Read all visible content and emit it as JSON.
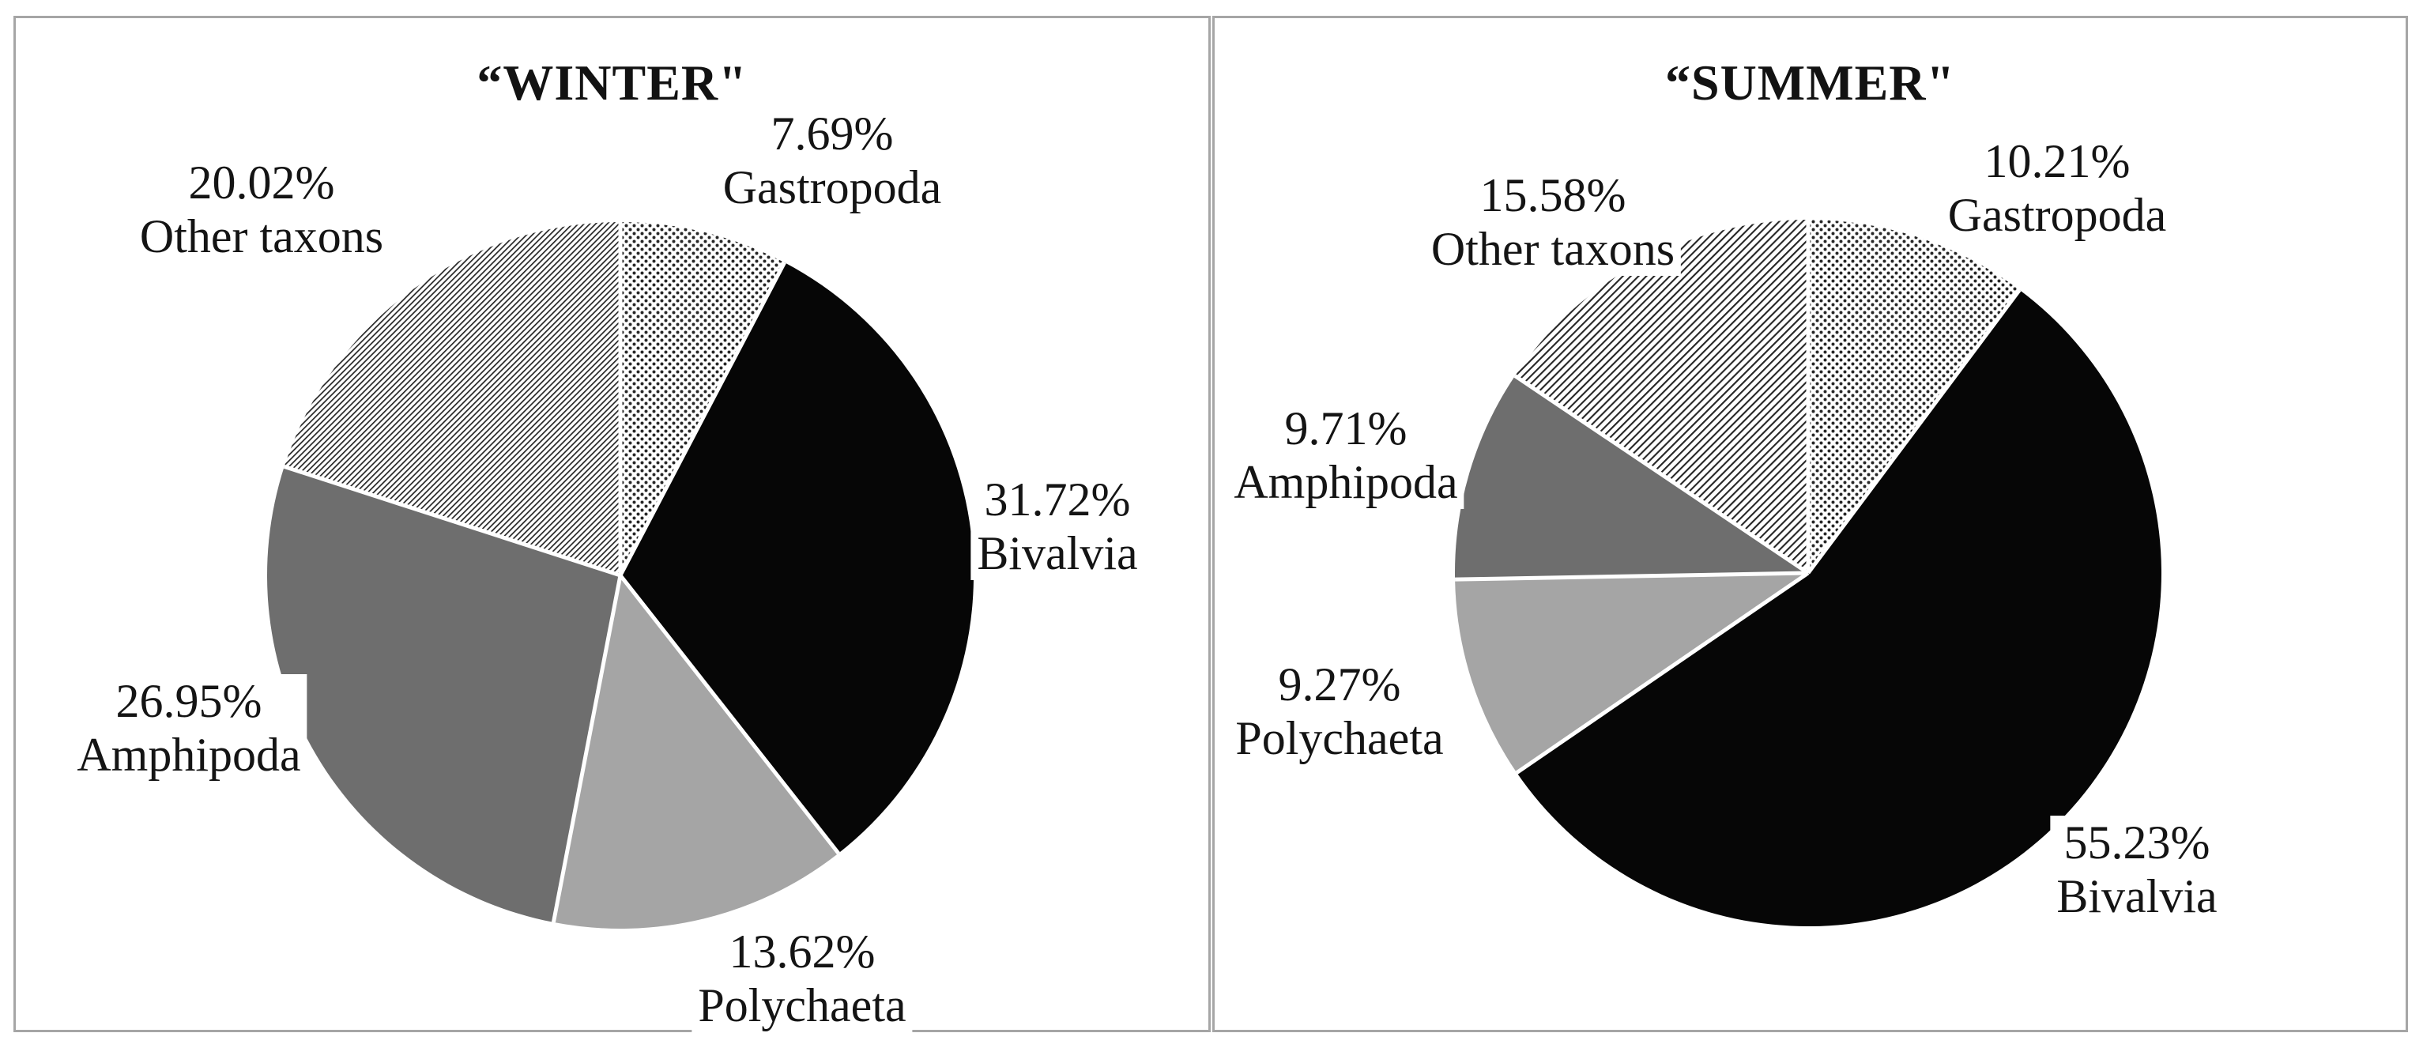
{
  "figure": {
    "background": "#ffffff",
    "panel_border_color": "#a6a6a6"
  },
  "colors": {
    "black": "#060606",
    "gray_dark": "#6e6e6e",
    "gray_light": "#a5a5a5",
    "pattern_ink": "#262626",
    "pattern_background": "#ffffff",
    "separator_white": "#ffffff",
    "text": "#141414"
  },
  "chart_data": [
    {
      "type": "pie",
      "title": "“WINTER\"",
      "direction": "clockwise",
      "start_angle": "12-oclock",
      "legend": "none",
      "slices": [
        {
          "name": "Gastropoda",
          "value_pct": 7.69,
          "label": "7.69%",
          "fill": "dots"
        },
        {
          "name": "Bivalvia",
          "value_pct": 31.72,
          "label": "31.72%",
          "fill": "black"
        },
        {
          "name": "Polychaeta",
          "value_pct": 13.62,
          "label": "13.62%",
          "fill": "gray_light"
        },
        {
          "name": "Amphipoda",
          "value_pct": 26.95,
          "label": "26.95%",
          "fill": "gray_dark"
        },
        {
          "name": "Other taxons",
          "value_pct": 20.02,
          "label": "20.02%",
          "fill": "hatch"
        }
      ]
    },
    {
      "type": "pie",
      "title": "“SUMMER\"",
      "direction": "clockwise",
      "start_angle": "12-oclock",
      "legend": "none",
      "slices": [
        {
          "name": "Gastropoda",
          "value_pct": 10.21,
          "label": "10.21%",
          "fill": "dots"
        },
        {
          "name": "Bivalvia",
          "value_pct": 55.23,
          "label": "55.23%",
          "fill": "black"
        },
        {
          "name": "Polychaeta",
          "value_pct": 9.27,
          "label": "9.27%",
          "fill": "gray_light"
        },
        {
          "name": "Amphipoda",
          "value_pct": 9.71,
          "label": "9.71%",
          "fill": "gray_dark"
        },
        {
          "name": "Other taxons",
          "value_pct": 15.58,
          "label": "15.58%",
          "fill": "hatch"
        }
      ]
    }
  ]
}
